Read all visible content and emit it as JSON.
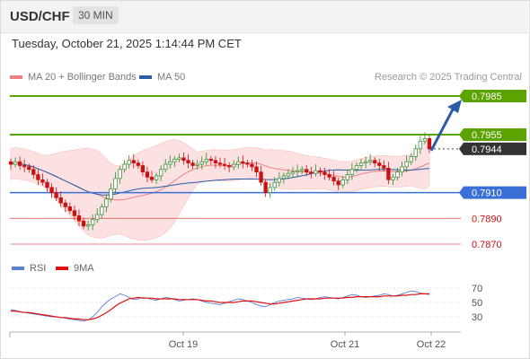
{
  "header": {
    "symbol": "USD/CHF",
    "timeframe": "30 MIN"
  },
  "timestamp": "Tuesday, October 21, 2025 1:14:44 PM CET",
  "legend": {
    "ma20": {
      "label": "MA 20 + Bollinger Bands",
      "color": "#f08080"
    },
    "ma50": {
      "label": "MA 50",
      "color": "#2b5ca8"
    }
  },
  "credit": "Research © 2025 Trading Central",
  "rsi_legend": {
    "rsi": {
      "label": "RSI",
      "color": "#5b7fd6"
    },
    "ma9": {
      "label": "9MA",
      "color": "#dd1111"
    }
  },
  "colors": {
    "up": "#2a8a2a",
    "down": "#cc1111",
    "resistance": "#5aa300",
    "support": "#3b6fd8",
    "level": "#e06060",
    "arrow": "#2b5ca8"
  },
  "chart_data": [
    {
      "type": "candlestick",
      "title": "USD/CHF 30 MIN",
      "x_ticks": [
        "Oct 19",
        "Oct 21",
        "Oct 22"
      ],
      "last_price": 0.7944,
      "levels": [
        {
          "value": 0.7985,
          "label": "0.7985",
          "kind": "target"
        },
        {
          "value": 0.7955,
          "label": "0.7955",
          "kind": "resistance"
        },
        {
          "value": 0.7944,
          "label": "0.7944",
          "kind": "last"
        },
        {
          "value": 0.791,
          "label": "0.7910",
          "kind": "pivot"
        },
        {
          "value": 0.789,
          "label": "0.7890",
          "kind": "support"
        },
        {
          "value": 0.787,
          "label": "0.7870",
          "kind": "support"
        }
      ],
      "bollinger_bands": "MA 20 + Bollinger Bands",
      "close_series": [
        0.7932,
        0.7934,
        0.7931,
        0.793,
        0.7928,
        0.7924,
        0.792,
        0.7918,
        0.7914,
        0.791,
        0.7906,
        0.7902,
        0.7899,
        0.7896,
        0.7892,
        0.7888,
        0.7884,
        0.7885,
        0.7889,
        0.7893,
        0.7899,
        0.7905,
        0.7913,
        0.7921,
        0.7928,
        0.7932,
        0.7935,
        0.7933,
        0.7931,
        0.7926,
        0.7922,
        0.792,
        0.7923,
        0.7928,
        0.7932,
        0.7934,
        0.7936,
        0.7937,
        0.7935,
        0.7933,
        0.7931,
        0.7932,
        0.7934,
        0.7936,
        0.7935,
        0.7933,
        0.7932,
        0.7931,
        0.793,
        0.7932,
        0.7934,
        0.7933,
        0.7932,
        0.793,
        0.7926,
        0.7918,
        0.791,
        0.7914,
        0.7918,
        0.7921,
        0.7923,
        0.7925,
        0.7926,
        0.7927,
        0.7928,
        0.7926,
        0.7925,
        0.7927,
        0.7926,
        0.7924,
        0.7922,
        0.7919,
        0.7916,
        0.792,
        0.7924,
        0.7928,
        0.7931,
        0.7933,
        0.7934,
        0.7935,
        0.7933,
        0.7931,
        0.7929,
        0.792,
        0.7922,
        0.7926,
        0.793,
        0.7934,
        0.7938,
        0.7944,
        0.795,
        0.7952,
        0.7944
      ]
    },
    {
      "type": "line",
      "title": "RSI",
      "y_ticks": [
        70,
        50,
        30
      ],
      "ylim": [
        20,
        80
      ],
      "series": [
        {
          "name": "RSI",
          "values": [
            40,
            39,
            37,
            36,
            35,
            34,
            33,
            32,
            31,
            30,
            30,
            29,
            28,
            27,
            26,
            25,
            24,
            26,
            30,
            36,
            44,
            50,
            55,
            58,
            62,
            60,
            57,
            54,
            55,
            57,
            56,
            54,
            53,
            55,
            57,
            56,
            54,
            52,
            53,
            54,
            55,
            54,
            52,
            50,
            49,
            48,
            47,
            49,
            51,
            53,
            55,
            54,
            52,
            50,
            47,
            45,
            44,
            47,
            50,
            52,
            53,
            54,
            55,
            57,
            56,
            55,
            54,
            55,
            57,
            58,
            57,
            56,
            55,
            57,
            59,
            61,
            60,
            58,
            57,
            58,
            59,
            60,
            62,
            61,
            59,
            60,
            62,
            64,
            66,
            65,
            63,
            62,
            61
          ]
        },
        {
          "name": "9MA",
          "values": [
            38,
            38,
            37,
            36,
            36,
            35,
            34,
            33,
            32,
            31,
            30,
            29,
            29,
            28,
            27,
            27,
            26,
            26,
            27,
            29,
            32,
            36,
            40,
            45,
            49,
            52,
            55,
            56,
            57,
            56,
            56,
            56,
            55,
            55,
            55,
            55,
            55,
            54,
            54,
            54,
            54,
            54,
            53,
            52,
            52,
            51,
            50,
            50,
            50,
            50,
            51,
            52,
            52,
            52,
            51,
            50,
            49,
            48,
            48,
            49,
            50,
            51,
            52,
            53,
            54,
            55,
            55,
            55,
            55,
            56,
            56,
            56,
            56,
            56,
            57,
            57,
            58,
            58,
            58,
            58,
            58,
            58,
            59,
            59,
            59,
            59,
            60,
            60,
            61,
            61,
            62,
            62,
            62
          ]
        }
      ]
    }
  ]
}
